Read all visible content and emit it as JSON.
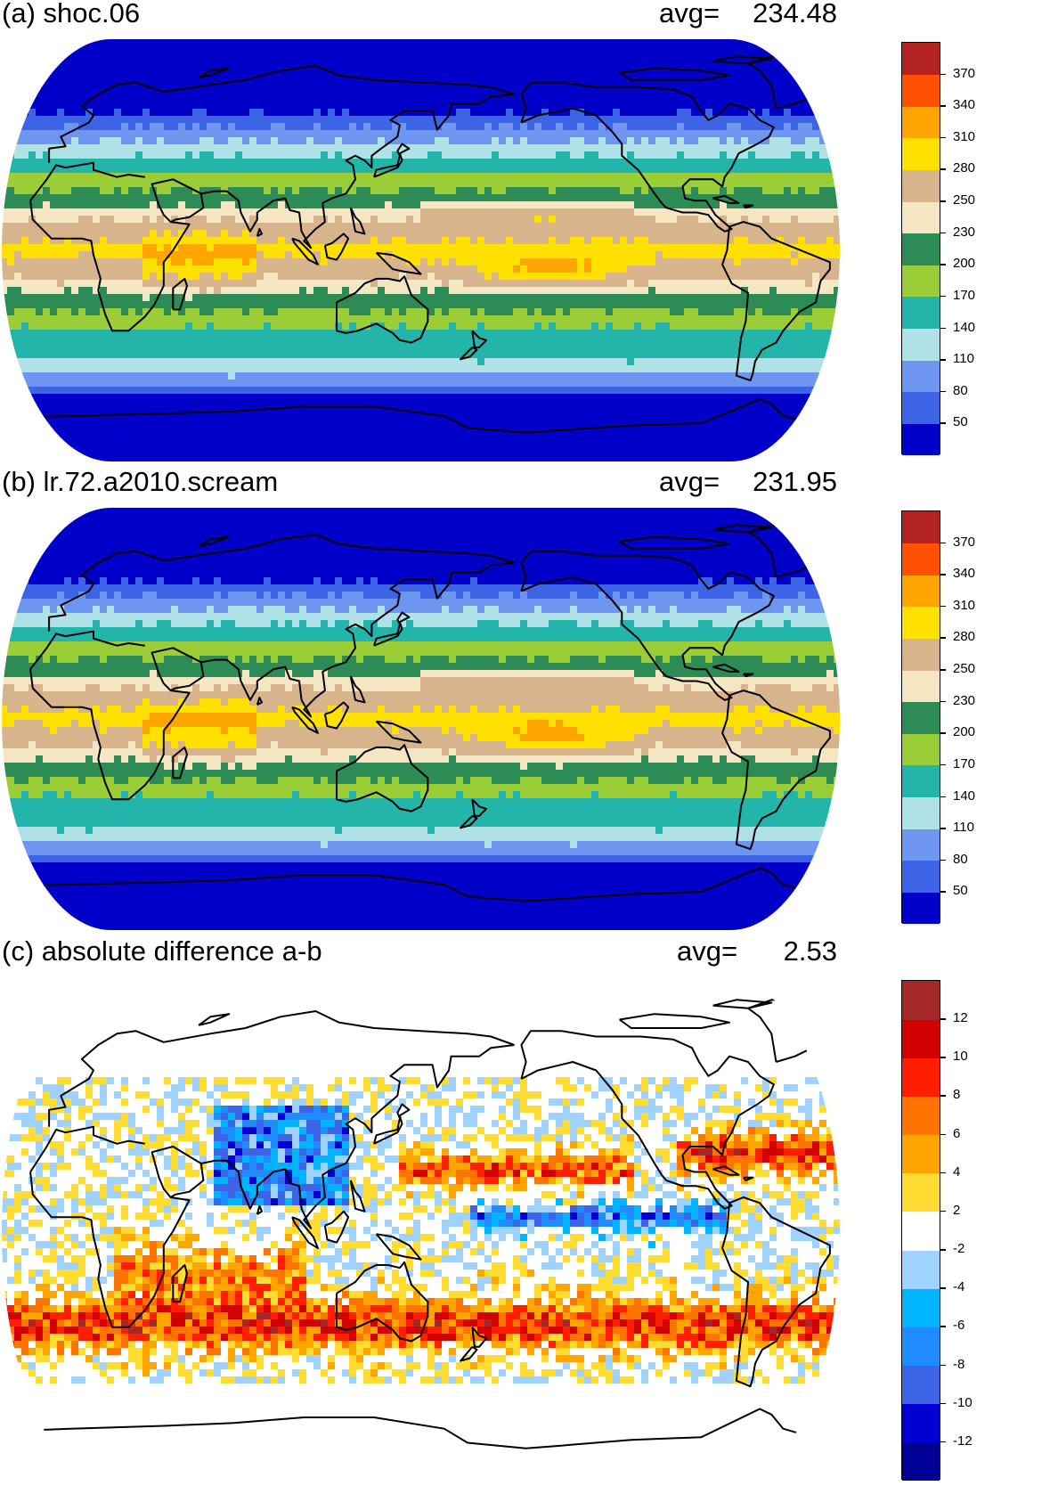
{
  "panels": [
    {
      "title": "(a) shoc.06",
      "avg_label": "avg=",
      "avg_value": "234.48",
      "colors": [
        "#0000c8",
        "#3d64e6",
        "#6e96f0",
        "#afe1e6",
        "#23b4aa",
        "#9bcd37",
        "#2d8c55",
        "#f5e6c3",
        "#d7b48c",
        "#ffe100",
        "#ffa500",
        "#ff5000",
        "#b42323"
      ],
      "labels": [
        "50",
        "80",
        "110",
        "140",
        "170",
        "200",
        "230",
        "250",
        "280",
        "310",
        "340",
        "370"
      ]
    },
    {
      "title": "(b) lr.72.a2010.scream",
      "avg_label": "avg=",
      "avg_value": "231.95",
      "colors": [
        "#0000c8",
        "#3d64e6",
        "#6e96f0",
        "#afe1e6",
        "#23b4aa",
        "#9bcd37",
        "#2d8c55",
        "#f5e6c3",
        "#d7b48c",
        "#ffe100",
        "#ffa500",
        "#ff5000",
        "#b42323"
      ],
      "labels": [
        "50",
        "80",
        "110",
        "140",
        "170",
        "200",
        "230",
        "250",
        "280",
        "310",
        "340",
        "370"
      ]
    },
    {
      "title": "(c) absolute difference a-b",
      "avg_label": "avg=",
      "avg_value": "2.53",
      "colors": [
        "#000096",
        "#0000d2",
        "#3c64e6",
        "#1e8cff",
        "#00b4ff",
        "#a0d2ff",
        "#ffffff",
        "#ffdc32",
        "#ffa500",
        "#ff7300",
        "#ff1e00",
        "#d20000",
        "#a52828"
      ],
      "labels": [
        "-12",
        "-10",
        "-8",
        "-6",
        "-4",
        "-2",
        "2",
        "4",
        "6",
        "8",
        "10",
        "12"
      ]
    }
  ]
}
